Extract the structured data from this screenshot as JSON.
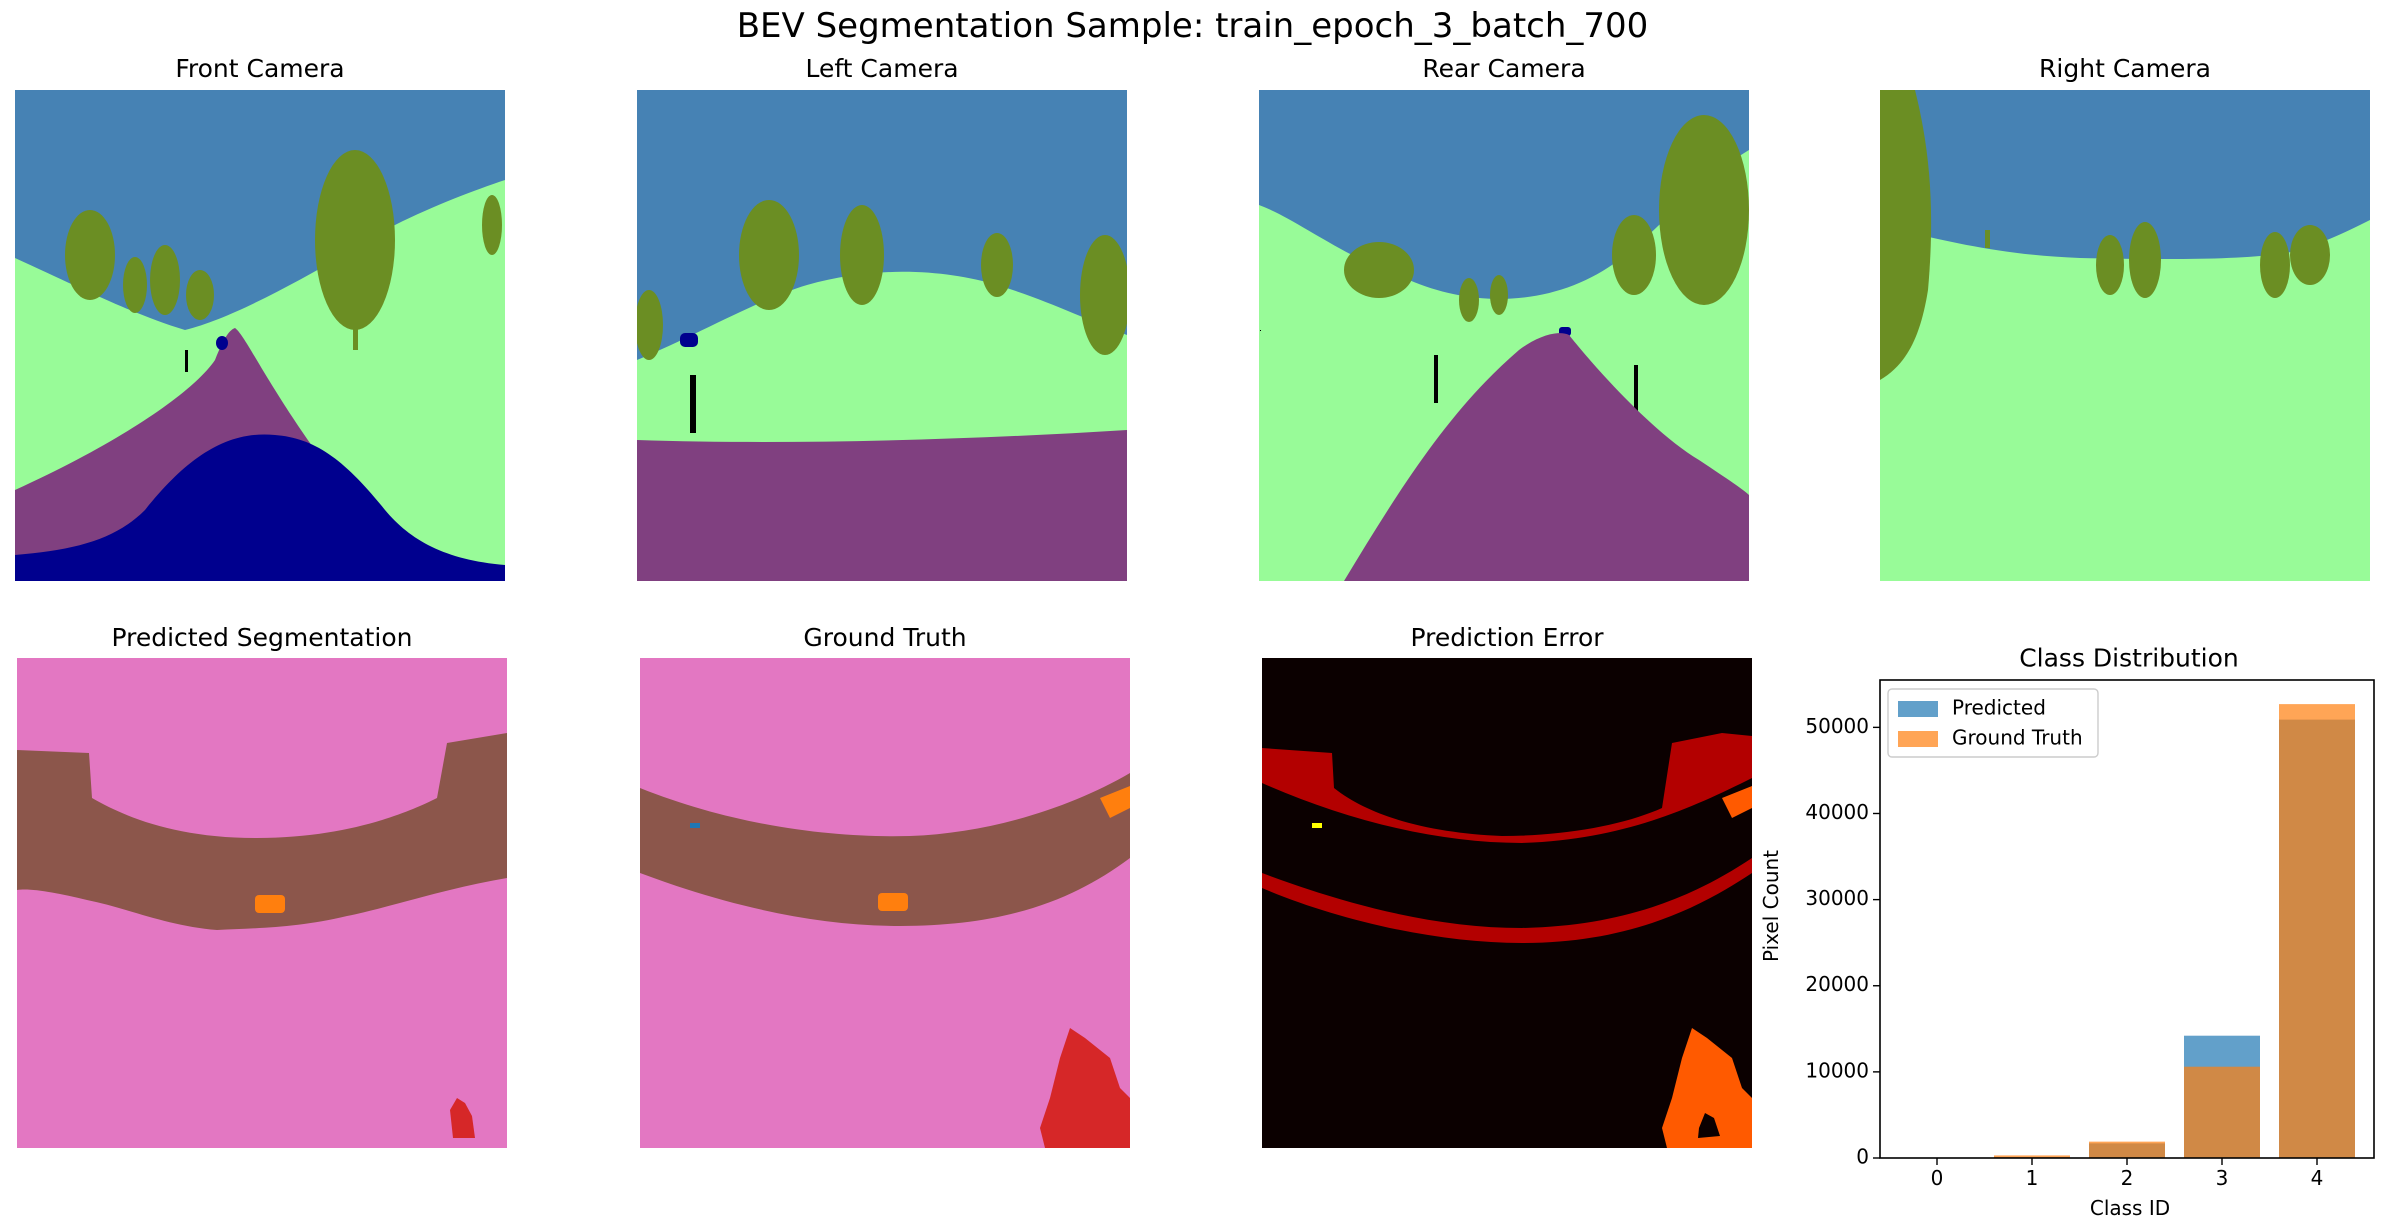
{
  "figure": {
    "suptitle": "BEV Segmentation Sample: train_epoch_3_batch_700"
  },
  "panels": {
    "front_camera": "Front Camera",
    "left_camera": "Left Camera",
    "rear_camera": "Rear Camera",
    "right_camera": "Right Camera",
    "predicted_segmentation": "Predicted Segmentation",
    "ground_truth": "Ground Truth",
    "prediction_error": "Prediction Error",
    "class_distribution": "Class Distribution"
  },
  "colors": {
    "sky": "#4682b4",
    "vegetation": "#6b8e23",
    "terrain": "#98fb98",
    "road": "#804080",
    "vehicle": "#00008e",
    "pole": "#000000",
    "bev_background": "#e377c2",
    "bev_road": "#8c564b",
    "bev_vehicle": "#ff7f0e",
    "bev_object": "#d62728",
    "error_background": "#0b0000",
    "error_red": "#b30000",
    "error_orange": "#ff5a00",
    "predicted_bar": "#1f77b4",
    "ground_truth_bar": "#ff7f0e"
  },
  "chart_data": {
    "type": "bar",
    "title": "Class Distribution",
    "xlabel": "Class ID",
    "ylabel": "Pixel Count",
    "categories": [
      "0",
      "1",
      "2",
      "3",
      "4"
    ],
    "x": [
      0,
      1,
      2,
      3,
      4
    ],
    "series": [
      {
        "name": "Predicted",
        "values": [
          0,
          100,
          1700,
          14200,
          50900
        ],
        "color": "#1f77b4",
        "alpha": 0.7
      },
      {
        "name": "Ground Truth",
        "values": [
          0,
          300,
          1900,
          10600,
          52700
        ],
        "color": "#ff7f0e",
        "alpha": 0.7
      }
    ],
    "ylim": [
      0,
      55500
    ],
    "xlim": [
      -0.6,
      4.6
    ],
    "yticks": [
      0,
      10000,
      20000,
      30000,
      40000,
      50000
    ],
    "ytick_labels": [
      "0",
      "10000",
      "20000",
      "30000",
      "40000",
      "50000"
    ],
    "xtick_labels": [
      "0",
      "1",
      "2",
      "3",
      "4"
    ],
    "legend": "top-left",
    "grid": false
  }
}
